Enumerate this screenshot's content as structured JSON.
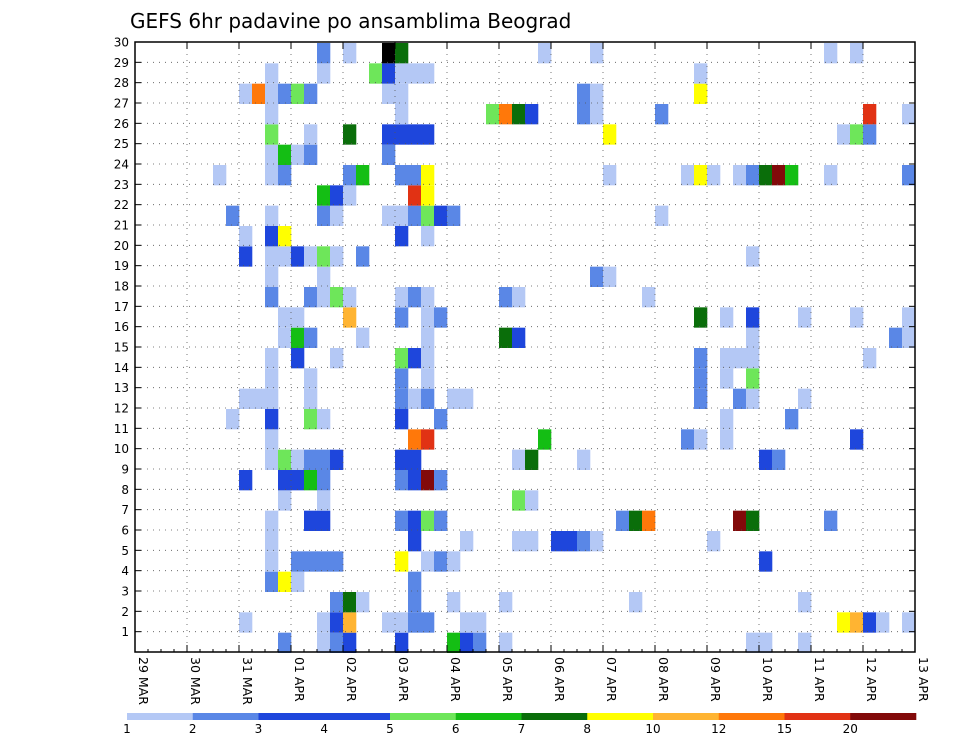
{
  "chart_data": {
    "type": "heatmap",
    "title": "GEFS 6hr padavine po ansamblima Beograd",
    "xlabel": "",
    "ylabel": "",
    "x_ticks": [
      "29 MAR",
      "30 MAR",
      "31 MAR",
      "01 APR",
      "02 APR",
      "03 APR",
      "04 APR",
      "05 APR",
      "06 APR",
      "07 APR",
      "08 APR",
      "09 APR",
      "10 APR",
      "11 APR",
      "12 APR",
      "13 APR"
    ],
    "y_ticks": [
      "1",
      "2",
      "3",
      "4",
      "5",
      "6",
      "7",
      "8",
      "9",
      "10",
      "11",
      "12",
      "13",
      "14",
      "15",
      "16",
      "17",
      "18",
      "19",
      "20",
      "21",
      "22",
      "23",
      "24",
      "25",
      "26",
      "27",
      "28",
      "29",
      "30"
    ],
    "x_steps": 60,
    "steps_per_day": 4,
    "ylim": [
      0,
      30
    ],
    "grid": true,
    "legend": {
      "position": "bottom",
      "levels": [
        "1",
        "2",
        "3",
        "4",
        "5",
        "6",
        "7",
        "8",
        "10",
        "12",
        "15",
        "20"
      ],
      "colors": [
        "#b4c8f5",
        "#5a87e6",
        "#1e46dc",
        "#1e46dc",
        "#6ee65a",
        "#14be14",
        "#0a6e0a",
        "#ffff00",
        "#ffb432",
        "#ff780a",
        "#e13214",
        "#820a0a"
      ]
    },
    "cells_format": "[x_step, member, class]",
    "cells": [
      [
        11,
        1,
        2
      ],
      [
        14,
        1,
        1
      ],
      [
        15,
        1,
        2
      ],
      [
        16,
        1,
        3
      ],
      [
        20,
        1,
        3
      ],
      [
        24,
        1,
        6
      ],
      [
        25,
        1,
        3
      ],
      [
        26,
        1,
        2
      ],
      [
        28,
        1,
        1
      ],
      [
        47,
        1,
        1
      ],
      [
        48,
        1,
        1
      ],
      [
        51,
        1,
        1
      ],
      [
        8,
        2,
        1
      ],
      [
        14,
        2,
        1
      ],
      [
        15,
        2,
        3
      ],
      [
        16,
        2,
        9
      ],
      [
        19,
        2,
        1
      ],
      [
        20,
        2,
        1
      ],
      [
        21,
        2,
        2
      ],
      [
        22,
        2,
        2
      ],
      [
        25,
        2,
        1
      ],
      [
        26,
        2,
        1
      ],
      [
        54,
        2,
        8
      ],
      [
        55,
        2,
        9
      ],
      [
        56,
        2,
        3
      ],
      [
        57,
        2,
        1
      ],
      [
        59,
        2,
        1
      ],
      [
        15,
        3,
        2
      ],
      [
        16,
        3,
        7
      ],
      [
        17,
        3,
        1
      ],
      [
        21,
        3,
        2
      ],
      [
        24,
        3,
        1
      ],
      [
        28,
        3,
        1
      ],
      [
        38,
        3,
        1
      ],
      [
        51,
        3,
        1
      ],
      [
        10,
        4,
        2
      ],
      [
        11,
        4,
        8
      ],
      [
        12,
        4,
        1
      ],
      [
        21,
        4,
        2
      ],
      [
        10,
        5,
        1
      ],
      [
        12,
        5,
        2
      ],
      [
        13,
        5,
        2
      ],
      [
        14,
        5,
        2
      ],
      [
        15,
        5,
        2
      ],
      [
        20,
        5,
        8
      ],
      [
        22,
        5,
        1
      ],
      [
        23,
        5,
        2
      ],
      [
        24,
        5,
        1
      ],
      [
        48,
        5,
        3
      ],
      [
        10,
        6,
        1
      ],
      [
        21,
        6,
        3
      ],
      [
        25,
        6,
        1
      ],
      [
        29,
        6,
        1
      ],
      [
        30,
        6,
        1
      ],
      [
        32,
        6,
        3
      ],
      [
        33,
        6,
        3
      ],
      [
        34,
        6,
        2
      ],
      [
        35,
        6,
        1
      ],
      [
        44,
        6,
        1
      ],
      [
        10,
        7,
        1
      ],
      [
        13,
        7,
        3
      ],
      [
        14,
        7,
        3
      ],
      [
        20,
        7,
        2
      ],
      [
        21,
        7,
        3
      ],
      [
        22,
        7,
        5
      ],
      [
        23,
        7,
        2
      ],
      [
        37,
        7,
        2
      ],
      [
        38,
        7,
        7
      ],
      [
        39,
        7,
        10
      ],
      [
        46,
        7,
        12
      ],
      [
        47,
        7,
        7
      ],
      [
        53,
        7,
        2
      ],
      [
        11,
        8,
        1
      ],
      [
        14,
        8,
        1
      ],
      [
        29,
        8,
        5
      ],
      [
        30,
        8,
        1
      ],
      [
        8,
        9,
        3
      ],
      [
        11,
        9,
        3
      ],
      [
        12,
        9,
        3
      ],
      [
        13,
        9,
        6
      ],
      [
        14,
        9,
        2
      ],
      [
        20,
        9,
        2
      ],
      [
        21,
        9,
        3
      ],
      [
        22,
        9,
        12
      ],
      [
        23,
        9,
        2
      ],
      [
        10,
        10,
        1
      ],
      [
        11,
        10,
        5
      ],
      [
        12,
        10,
        1
      ],
      [
        13,
        10,
        2
      ],
      [
        14,
        10,
        2
      ],
      [
        15,
        10,
        3
      ],
      [
        20,
        10,
        3
      ],
      [
        21,
        10,
        3
      ],
      [
        29,
        10,
        1
      ],
      [
        30,
        10,
        7
      ],
      [
        34,
        10,
        1
      ],
      [
        48,
        10,
        3
      ],
      [
        49,
        10,
        2
      ],
      [
        10,
        11,
        1
      ],
      [
        21,
        11,
        10
      ],
      [
        22,
        11,
        11
      ],
      [
        31,
        11,
        6
      ],
      [
        42,
        11,
        2
      ],
      [
        43,
        11,
        1
      ],
      [
        45,
        11,
        1
      ],
      [
        55,
        11,
        3
      ],
      [
        7,
        12,
        1
      ],
      [
        10,
        12,
        3
      ],
      [
        13,
        12,
        5
      ],
      [
        14,
        12,
        1
      ],
      [
        20,
        12,
        3
      ],
      [
        23,
        12,
        2
      ],
      [
        45,
        12,
        1
      ],
      [
        50,
        12,
        2
      ],
      [
        8,
        13,
        1
      ],
      [
        9,
        13,
        1
      ],
      [
        10,
        13,
        1
      ],
      [
        13,
        13,
        1
      ],
      [
        20,
        13,
        2
      ],
      [
        21,
        13,
        1
      ],
      [
        22,
        13,
        2
      ],
      [
        24,
        13,
        1
      ],
      [
        25,
        13,
        1
      ],
      [
        43,
        13,
        2
      ],
      [
        46,
        13,
        2
      ],
      [
        47,
        13,
        1
      ],
      [
        51,
        13,
        1
      ],
      [
        10,
        14,
        1
      ],
      [
        13,
        14,
        1
      ],
      [
        20,
        14,
        2
      ],
      [
        22,
        14,
        1
      ],
      [
        43,
        14,
        2
      ],
      [
        45,
        14,
        1
      ],
      [
        47,
        14,
        5
      ],
      [
        10,
        15,
        1
      ],
      [
        12,
        15,
        3
      ],
      [
        15,
        15,
        1
      ],
      [
        20,
        15,
        5
      ],
      [
        21,
        15,
        3
      ],
      [
        22,
        15,
        1
      ],
      [
        43,
        15,
        2
      ],
      [
        45,
        15,
        1
      ],
      [
        46,
        15,
        1
      ],
      [
        47,
        15,
        1
      ],
      [
        56,
        15,
        1
      ],
      [
        11,
        16,
        1
      ],
      [
        12,
        16,
        6
      ],
      [
        13,
        16,
        2
      ],
      [
        17,
        16,
        1
      ],
      [
        22,
        16,
        1
      ],
      [
        28,
        16,
        7
      ],
      [
        29,
        16,
        3
      ],
      [
        47,
        16,
        1
      ],
      [
        58,
        16,
        2
      ],
      [
        59,
        16,
        1
      ],
      [
        11,
        17,
        1
      ],
      [
        12,
        17,
        1
      ],
      [
        16,
        17,
        9
      ],
      [
        20,
        17,
        2
      ],
      [
        22,
        17,
        1
      ],
      [
        23,
        17,
        2
      ],
      [
        43,
        17,
        7
      ],
      [
        45,
        17,
        1
      ],
      [
        47,
        17,
        3
      ],
      [
        51,
        17,
        1
      ],
      [
        55,
        17,
        1
      ],
      [
        59,
        17,
        1
      ],
      [
        10,
        18,
        2
      ],
      [
        13,
        18,
        2
      ],
      [
        14,
        18,
        1
      ],
      [
        15,
        18,
        5
      ],
      [
        16,
        18,
        1
      ],
      [
        20,
        18,
        1
      ],
      [
        21,
        18,
        2
      ],
      [
        22,
        18,
        1
      ],
      [
        28,
        18,
        2
      ],
      [
        29,
        18,
        1
      ],
      [
        39,
        18,
        1
      ],
      [
        10,
        19,
        1
      ],
      [
        14,
        19,
        1
      ],
      [
        35,
        19,
        2
      ],
      [
        36,
        19,
        1
      ],
      [
        8,
        20,
        3
      ],
      [
        10,
        20,
        1
      ],
      [
        11,
        20,
        1
      ],
      [
        12,
        20,
        3
      ],
      [
        13,
        20,
        1
      ],
      [
        14,
        20,
        5
      ],
      [
        15,
        20,
        1
      ],
      [
        17,
        20,
        2
      ],
      [
        47,
        20,
        1
      ],
      [
        8,
        21,
        1
      ],
      [
        10,
        21,
        3
      ],
      [
        11,
        21,
        8
      ],
      [
        20,
        21,
        3
      ],
      [
        22,
        21,
        1
      ],
      [
        7,
        22,
        2
      ],
      [
        10,
        22,
        1
      ],
      [
        14,
        22,
        2
      ],
      [
        15,
        22,
        1
      ],
      [
        19,
        22,
        1
      ],
      [
        20,
        22,
        1
      ],
      [
        21,
        22,
        2
      ],
      [
        22,
        22,
        5
      ],
      [
        23,
        22,
        3
      ],
      [
        24,
        22,
        2
      ],
      [
        40,
        22,
        1
      ],
      [
        14,
        23,
        6
      ],
      [
        15,
        23,
        3
      ],
      [
        16,
        23,
        1
      ],
      [
        21,
        23,
        11
      ],
      [
        22,
        23,
        8
      ],
      [
        6,
        24,
        1
      ],
      [
        10,
        24,
        1
      ],
      [
        11,
        24,
        2
      ],
      [
        16,
        24,
        2
      ],
      [
        17,
        24,
        6
      ],
      [
        20,
        24,
        2
      ],
      [
        21,
        24,
        2
      ],
      [
        22,
        24,
        8
      ],
      [
        36,
        24,
        1
      ],
      [
        42,
        24,
        1
      ],
      [
        43,
        24,
        8
      ],
      [
        44,
        24,
        1
      ],
      [
        46,
        24,
        1
      ],
      [
        47,
        24,
        2
      ],
      [
        48,
        24,
        7
      ],
      [
        49,
        24,
        12
      ],
      [
        50,
        24,
        6
      ],
      [
        53,
        24,
        1
      ],
      [
        59,
        24,
        2
      ],
      [
        10,
        25,
        1
      ],
      [
        11,
        25,
        6
      ],
      [
        12,
        25,
        1
      ],
      [
        13,
        25,
        2
      ],
      [
        19,
        25,
        2
      ],
      [
        10,
        26,
        5
      ],
      [
        13,
        26,
        1
      ],
      [
        16,
        26,
        7
      ],
      [
        19,
        26,
        3
      ],
      [
        20,
        26,
        3
      ],
      [
        21,
        26,
        3
      ],
      [
        22,
        26,
        3
      ],
      [
        36,
        26,
        8
      ],
      [
        54,
        26,
        1
      ],
      [
        55,
        26,
        5
      ],
      [
        56,
        26,
        2
      ],
      [
        10,
        27,
        1
      ],
      [
        20,
        27,
        1
      ],
      [
        27,
        27,
        5
      ],
      [
        28,
        27,
        10
      ],
      [
        29,
        27,
        7
      ],
      [
        30,
        27,
        3
      ],
      [
        34,
        27,
        2
      ],
      [
        35,
        27,
        1
      ],
      [
        40,
        27,
        2
      ],
      [
        56,
        27,
        11
      ],
      [
        59,
        27,
        1
      ],
      [
        8,
        28,
        1
      ],
      [
        9,
        28,
        10
      ],
      [
        10,
        28,
        1
      ],
      [
        11,
        28,
        2
      ],
      [
        12,
        28,
        5
      ],
      [
        13,
        28,
        2
      ],
      [
        19,
        28,
        1
      ],
      [
        20,
        28,
        1
      ],
      [
        34,
        28,
        2
      ],
      [
        35,
        28,
        1
      ],
      [
        43,
        28,
        8
      ],
      [
        10,
        29,
        1
      ],
      [
        14,
        29,
        1
      ],
      [
        18,
        29,
        5
      ],
      [
        19,
        29,
        3
      ],
      [
        20,
        29,
        1
      ],
      [
        21,
        29,
        1
      ],
      [
        22,
        29,
        1
      ],
      [
        43,
        29,
        1
      ],
      [
        14,
        30,
        2
      ],
      [
        16,
        30,
        1
      ],
      [
        19,
        30,
        15
      ],
      [
        20,
        30,
        7
      ],
      [
        31,
        30,
        1
      ],
      [
        35,
        30,
        1
      ],
      [
        53,
        30,
        1
      ],
      [
        55,
        30,
        1
      ]
    ]
  }
}
